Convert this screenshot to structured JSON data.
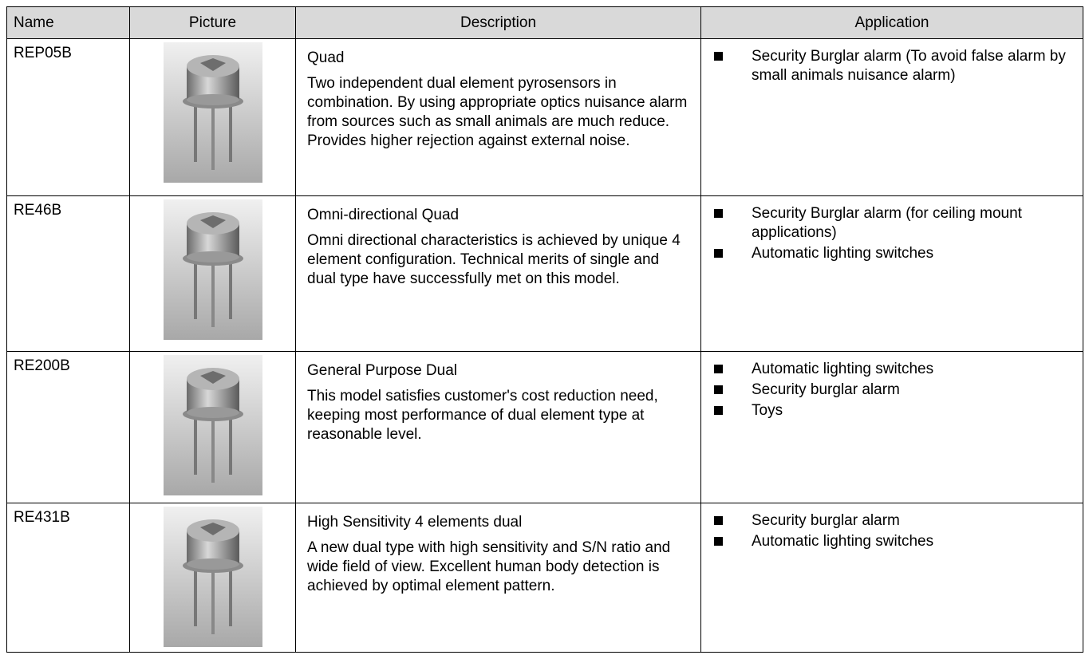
{
  "table": {
    "header": [
      "Name",
      "Picture",
      "Description",
      "Application"
    ],
    "rows": [
      {
        "name": "REP05B",
        "title": "Quad",
        "description": "Two independent dual element pyrosensors in combination. By using appropriate optics nuisance alarm from sources such as small animals are much reduce. Provides higher rejection against external noise.",
        "applications": [
          "Security Burglar alarm (To avoid false alarm by small animals nuisance alarm)"
        ]
      },
      {
        "name": "RE46B",
        "title": "Omni-directional Quad",
        "description": "Omni directional characteristics is achieved by unique 4 element configuration. Technical merits of single and dual type have successfully met on this model.",
        "applications": [
          "Security Burglar alarm (for ceiling mount applications)",
          "Automatic lighting switches"
        ]
      },
      {
        "name": "RE200B",
        "title": "General Purpose Dual",
        "description": "This model satisfies customer's cost reduction need, keeping most performance of dual element type at reasonable level.",
        "applications": [
          "Automatic lighting switches",
          "Security burglar alarm",
          "Toys"
        ]
      },
      {
        "name": "RE431B",
        "title": "High Sensitivity 4 elements dual",
        "description": "A new dual type with high sensitivity and S/N ratio and wide field of view. Excellent human body detection is achieved by optimal element pattern.",
        "applications": [
          "Security burglar alarm",
          "Automatic lighting switches"
        ]
      }
    ]
  }
}
